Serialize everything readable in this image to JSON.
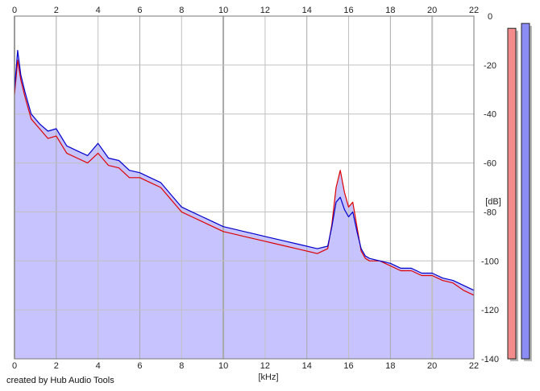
{
  "chart_data": {
    "type": "line",
    "xlabel": "[kHz]",
    "ylabel": "[dB]",
    "xlim": [
      0,
      22
    ],
    "ylim": [
      -140,
      0
    ],
    "x_ticks": [
      0,
      2,
      4,
      6,
      8,
      10,
      12,
      14,
      16,
      18,
      20,
      22
    ],
    "y_ticks": [
      0,
      -20,
      -40,
      -60,
      -80,
      -100,
      -120,
      -140
    ],
    "grid": true,
    "fill_color": "#c6c3ff",
    "series": [
      {
        "color": "#e00000",
        "x": [
          0,
          0.15,
          0.3,
          0.5,
          0.8,
          1.2,
          1.6,
          2.0,
          2.5,
          3.0,
          3.5,
          4.0,
          4.5,
          5.0,
          5.5,
          6.0,
          6.5,
          7.0,
          7.5,
          8.0,
          8.5,
          9.0,
          9.5,
          10.0,
          10.5,
          11.0,
          11.5,
          12.0,
          12.5,
          13.0,
          13.5,
          14.0,
          14.5,
          15.0,
          15.2,
          15.4,
          15.6,
          15.8,
          16.0,
          16.2,
          16.4,
          16.6,
          16.8,
          17.0,
          17.5,
          18.0,
          18.5,
          19.0,
          19.5,
          20.0,
          20.5,
          21.0,
          21.5,
          22.0
        ],
        "values": [
          -32,
          -18,
          -26,
          -33,
          -42,
          -46,
          -50,
          -49,
          -56,
          -58,
          -60,
          -56,
          -61,
          -62,
          -66,
          -66,
          -68,
          -70,
          -75,
          -80,
          -82,
          -84,
          -86,
          -88,
          -89,
          -90,
          -91,
          -92,
          -93,
          -94,
          -95,
          -96,
          -97,
          -95,
          -85,
          -70,
          -63,
          -72,
          -78,
          -76,
          -86,
          -96,
          -99,
          -100,
          -100,
          -102,
          -104,
          -104,
          -106,
          -106,
          -108,
          -109,
          -112,
          -114
        ]
      },
      {
        "color": "#0000cc",
        "x": [
          0,
          0.15,
          0.3,
          0.5,
          0.8,
          1.2,
          1.6,
          2.0,
          2.5,
          3.0,
          3.5,
          4.0,
          4.5,
          5.0,
          5.5,
          6.0,
          6.5,
          7.0,
          7.5,
          8.0,
          8.5,
          9.0,
          9.5,
          10.0,
          10.5,
          11.0,
          11.5,
          12.0,
          12.5,
          13.0,
          13.5,
          14.0,
          14.5,
          15.0,
          15.2,
          15.4,
          15.6,
          15.8,
          16.0,
          16.2,
          16.4,
          16.6,
          16.8,
          17.0,
          17.5,
          18.0,
          18.5,
          19.0,
          19.5,
          20.0,
          20.5,
          21.0,
          21.5,
          22.0
        ],
        "values": [
          -30,
          -14,
          -24,
          -31,
          -40,
          -44,
          -47,
          -46,
          -53,
          -55,
          -57,
          -52,
          -58,
          -59,
          -63,
          -64,
          -66,
          -68,
          -73,
          -78,
          -80,
          -82,
          -84,
          -86,
          -87,
          -88,
          -89,
          -90,
          -91,
          -92,
          -93,
          -94,
          -95,
          -94,
          -86,
          -76,
          -74,
          -79,
          -82,
          -80,
          -88,
          -95,
          -98,
          -99,
          -100,
          -101,
          -103,
          -103,
          -105,
          -105,
          -107,
          -108,
          -110,
          -112
        ]
      }
    ],
    "level_meters": [
      {
        "color": "#f28b8b",
        "level_db": -5
      },
      {
        "color": "#8c8cf5",
        "level_db": -3
      }
    ],
    "footer": "created by Hub Audio Tools"
  }
}
